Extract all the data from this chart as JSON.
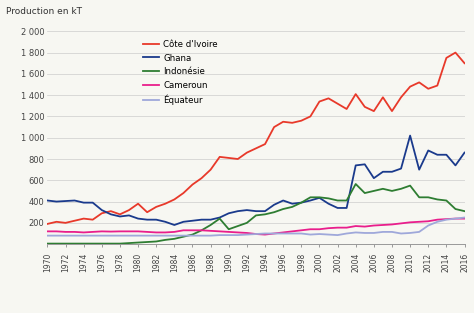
{
  "title": "Production en kT",
  "xlim": [
    1970,
    2016
  ],
  "ylim": [
    0,
    2000
  ],
  "yticks": [
    0,
    200,
    400,
    600,
    800,
    1000,
    1200,
    1400,
    1600,
    1800,
    2000
  ],
  "ytick_labels": [
    "",
    "200",
    "400",
    "600",
    "800",
    "1 000",
    "1 200",
    "1 400",
    "1 600",
    "1 800",
    "2 000"
  ],
  "xticks": [
    1970,
    1972,
    1974,
    1976,
    1978,
    1980,
    1982,
    1984,
    1986,
    1988,
    1990,
    1992,
    1994,
    1996,
    1998,
    2000,
    2002,
    2004,
    2006,
    2008,
    2010,
    2012,
    2014,
    2016
  ],
  "background_color": "#f7f7f2",
  "plot_bg": "#ffffff",
  "series": [
    {
      "name": "Côte d'Ivoire",
      "color": "#e8392a",
      "linewidth": 1.3,
      "years": [
        1970,
        1971,
        1972,
        1973,
        1974,
        1975,
        1976,
        1977,
        1978,
        1979,
        1980,
        1981,
        1982,
        1983,
        1984,
        1985,
        1986,
        1987,
        1988,
        1989,
        1990,
        1991,
        1992,
        1993,
        1994,
        1995,
        1996,
        1997,
        1998,
        1999,
        2000,
        2001,
        2002,
        2003,
        2004,
        2005,
        2006,
        2007,
        2008,
        2009,
        2010,
        2011,
        2012,
        2013,
        2014,
        2015,
        2016
      ],
      "values": [
        190,
        210,
        200,
        220,
        240,
        230,
        290,
        310,
        280,
        320,
        380,
        300,
        350,
        380,
        420,
        480,
        560,
        620,
        700,
        820,
        810,
        800,
        860,
        900,
        940,
        1100,
        1150,
        1140,
        1160,
        1200,
        1340,
        1370,
        1320,
        1270,
        1410,
        1290,
        1250,
        1380,
        1250,
        1380,
        1480,
        1520,
        1460,
        1490,
        1750,
        1800,
        1700
      ]
    },
    {
      "name": "Ghana",
      "color": "#1a3a8c",
      "linewidth": 1.3,
      "years": [
        1970,
        1971,
        1972,
        1973,
        1974,
        1975,
        1976,
        1977,
        1978,
        1979,
        1980,
        1981,
        1982,
        1983,
        1984,
        1985,
        1986,
        1987,
        1988,
        1989,
        1990,
        1991,
        1992,
        1993,
        1994,
        1995,
        1996,
        1997,
        1998,
        1999,
        2000,
        2001,
        2002,
        2003,
        2004,
        2005,
        2006,
        2007,
        2008,
        2009,
        2010,
        2011,
        2012,
        2013,
        2014,
        2015,
        2016
      ],
      "values": [
        410,
        400,
        405,
        410,
        390,
        390,
        320,
        280,
        260,
        270,
        240,
        230,
        230,
        210,
        180,
        210,
        220,
        230,
        230,
        250,
        290,
        310,
        320,
        310,
        310,
        370,
        410,
        380,
        390,
        410,
        435,
        380,
        340,
        340,
        740,
        750,
        620,
        680,
        680,
        710,
        1020,
        700,
        880,
        840,
        840,
        740,
        860
      ]
    },
    {
      "name": "Indonésie",
      "color": "#2e7d32",
      "linewidth": 1.3,
      "years": [
        1970,
        1971,
        1972,
        1973,
        1974,
        1975,
        1976,
        1977,
        1978,
        1979,
        1980,
        1981,
        1982,
        1983,
        1984,
        1985,
        1986,
        1987,
        1988,
        1989,
        1990,
        1991,
        1992,
        1993,
        1994,
        1995,
        1996,
        1997,
        1998,
        1999,
        2000,
        2001,
        2002,
        2003,
        2004,
        2005,
        2006,
        2007,
        2008,
        2009,
        2010,
        2011,
        2012,
        2013,
        2014,
        2015,
        2016
      ],
      "values": [
        5,
        5,
        5,
        5,
        5,
        5,
        5,
        5,
        5,
        10,
        15,
        20,
        25,
        40,
        50,
        70,
        90,
        130,
        180,
        240,
        140,
        170,
        200,
        270,
        280,
        300,
        330,
        350,
        390,
        440,
        440,
        430,
        410,
        410,
        565,
        480,
        500,
        520,
        500,
        520,
        550,
        440,
        440,
        420,
        410,
        330,
        310
      ]
    },
    {
      "name": "Cameroun",
      "color": "#e91e8c",
      "linewidth": 1.3,
      "years": [
        1970,
        1971,
        1972,
        1973,
        1974,
        1975,
        1976,
        1977,
        1978,
        1979,
        1980,
        1981,
        1982,
        1983,
        1984,
        1985,
        1986,
        1987,
        1988,
        1989,
        1990,
        1991,
        1992,
        1993,
        1994,
        1995,
        1996,
        1997,
        1998,
        1999,
        2000,
        2001,
        2002,
        2003,
        2004,
        2005,
        2006,
        2007,
        2008,
        2009,
        2010,
        2011,
        2012,
        2013,
        2014,
        2015,
        2016
      ],
      "values": [
        120,
        120,
        115,
        115,
        110,
        115,
        120,
        118,
        120,
        120,
        120,
        115,
        110,
        110,
        115,
        130,
        130,
        130,
        125,
        120,
        115,
        110,
        105,
        95,
        90,
        100,
        110,
        120,
        130,
        140,
        140,
        150,
        155,
        155,
        170,
        165,
        175,
        180,
        185,
        195,
        205,
        210,
        215,
        230,
        235,
        240,
        240
      ]
    },
    {
      "name": "Équateur",
      "color": "#9fa8da",
      "linewidth": 1.3,
      "years": [
        1970,
        1971,
        1972,
        1973,
        1974,
        1975,
        1976,
        1977,
        1978,
        1979,
        1980,
        1981,
        1982,
        1983,
        1984,
        1985,
        1986,
        1987,
        1988,
        1989,
        1990,
        1991,
        1992,
        1993,
        1994,
        1995,
        1996,
        1997,
        1998,
        1999,
        2000,
        2001,
        2002,
        2003,
        2004,
        2005,
        2006,
        2007,
        2008,
        2009,
        2010,
        2011,
        2012,
        2013,
        2014,
        2015,
        2016
      ],
      "values": [
        80,
        80,
        80,
        80,
        80,
        80,
        80,
        80,
        80,
        80,
        80,
        80,
        80,
        80,
        80,
        80,
        80,
        80,
        80,
        85,
        85,
        85,
        90,
        95,
        100,
        100,
        100,
        100,
        100,
        90,
        95,
        90,
        85,
        100,
        110,
        105,
        105,
        115,
        115,
        100,
        105,
        115,
        175,
        210,
        230,
        240,
        250
      ]
    }
  ]
}
